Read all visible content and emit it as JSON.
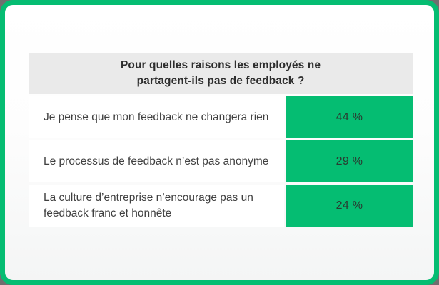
{
  "theme": {
    "accent_green": "#05bd72",
    "frame_border": "#05bd72",
    "header_bg": "#eaeaea",
    "row_bg": "#ffffff",
    "text_dark": "#2d2d2d",
    "text_row": "#404040",
    "value_text": "#2a3b31"
  },
  "table": {
    "header": "Pour quelles raisons les employés ne partagent-ils pas de feedback ?",
    "rows": [
      {
        "label": "Je pense que mon feedback ne changera rien",
        "value": "44 %"
      },
      {
        "label": "Le processus de feedback n’est pas anonyme",
        "value": "29 %"
      },
      {
        "label": "La culture d’entreprise n’encourage pas un feedback franc et honnête",
        "value": "24 %"
      }
    ]
  },
  "chart_data": {
    "type": "table",
    "title": "Pour quelles raisons les employés ne partagent-ils pas de feedback ?",
    "categories": [
      "Je pense que mon feedback ne changera rien",
      "Le processus de feedback n’est pas anonyme",
      "La culture d’entreprise n’encourage pas un feedback franc et honnête"
    ],
    "values": [
      44,
      29,
      24
    ],
    "value_labels": [
      "44 %",
      "29 %",
      "24 %"
    ],
    "unit": "%",
    "legend_position": "none",
    "grid": false,
    "accent_color": "#05bd72"
  }
}
